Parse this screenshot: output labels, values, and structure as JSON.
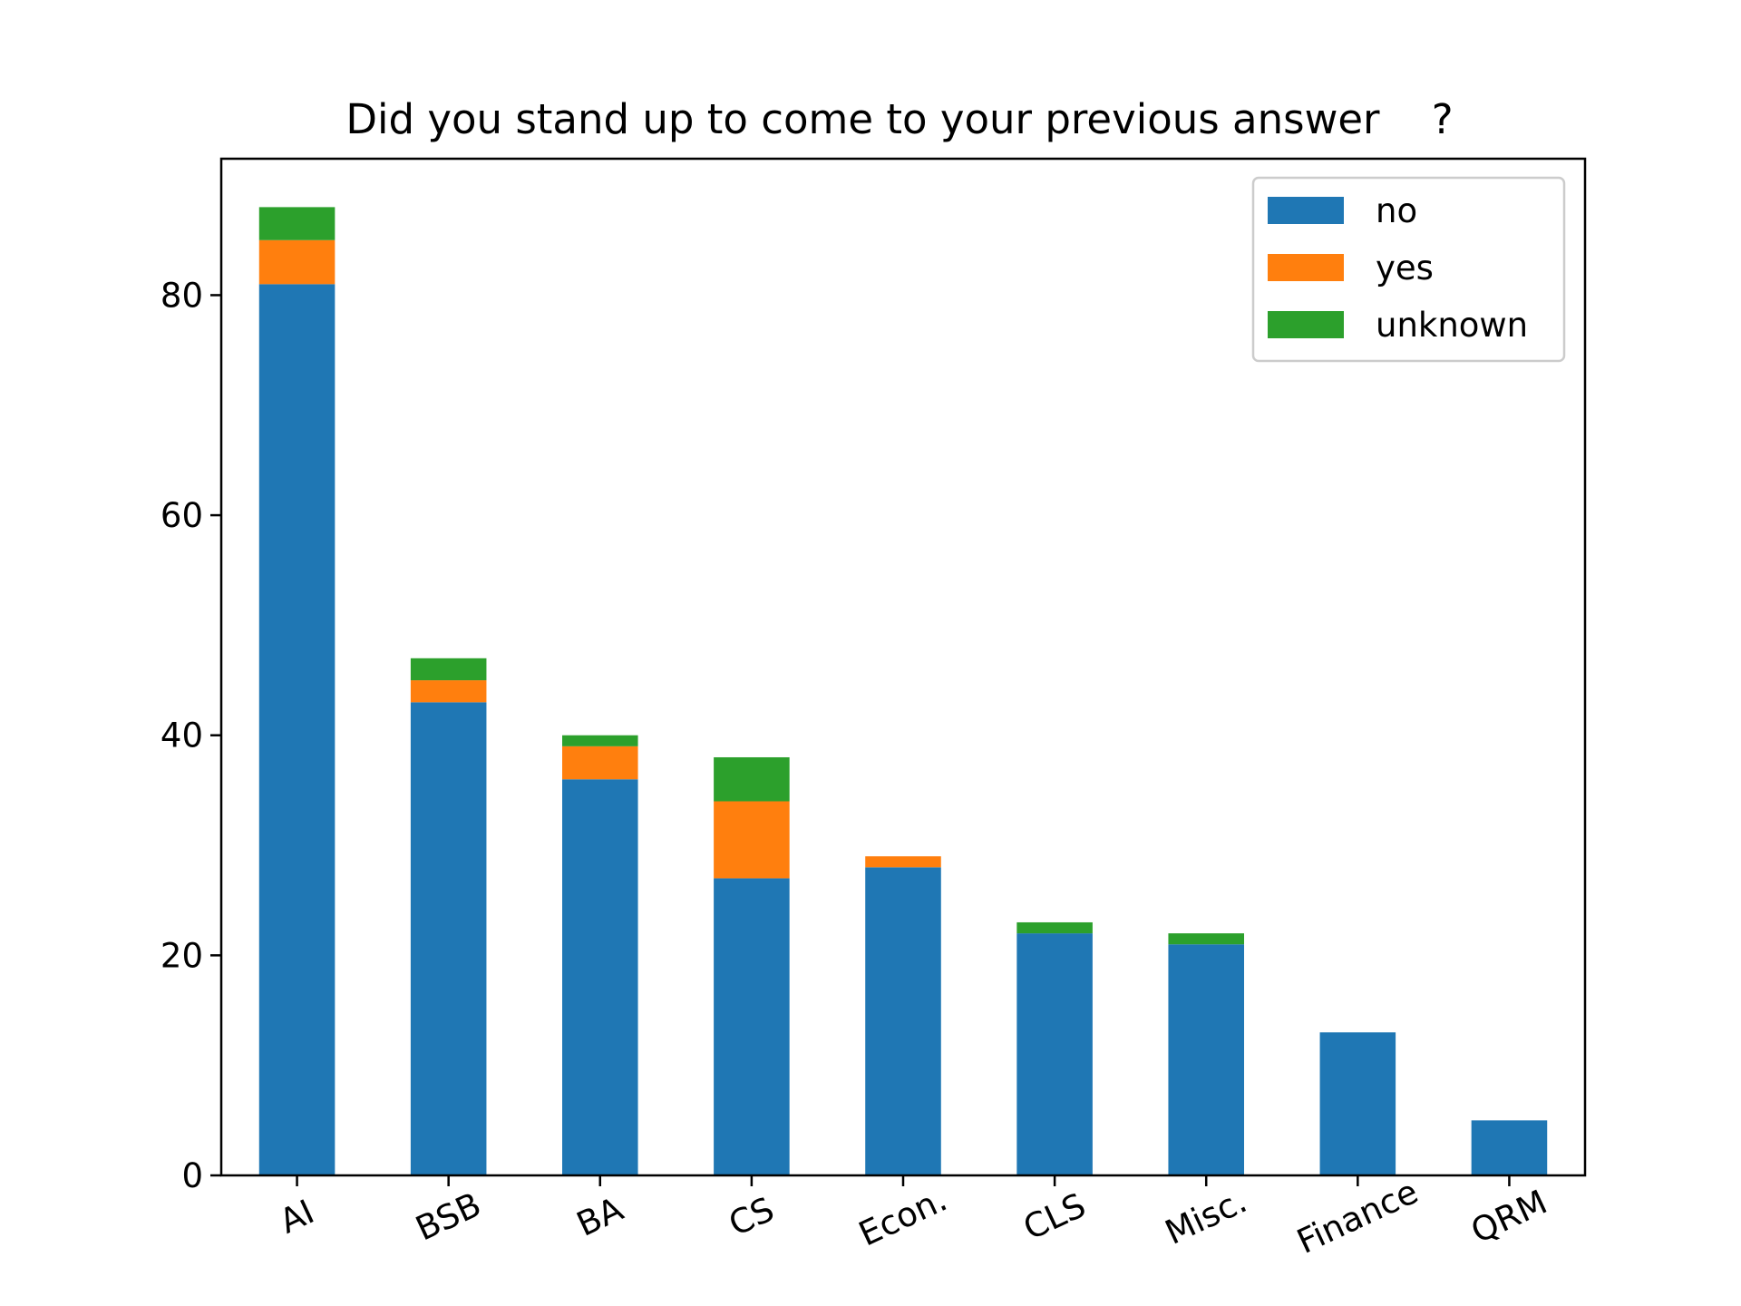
{
  "chart_data": {
    "type": "bar",
    "stacked": true,
    "title": "Did you stand up to come to your previous answer    ?",
    "xlabel": "",
    "ylabel": "",
    "categories": [
      "AI",
      "BSB",
      "BA",
      "CS",
      "Econ.",
      "CLS",
      "Misc.",
      "Finance",
      "QRM"
    ],
    "series": [
      {
        "name": "no",
        "color": "#1f77b4",
        "values": [
          81,
          43,
          36,
          27,
          28,
          22,
          21,
          13,
          5
        ]
      },
      {
        "name": "yes",
        "color": "#ff7f0e",
        "values": [
          4,
          2,
          3,
          7,
          1,
          0,
          0,
          0,
          0
        ]
      },
      {
        "name": "unknown",
        "color": "#2ca02c",
        "values": [
          3,
          2,
          1,
          4,
          0,
          1,
          1,
          0,
          0
        ]
      }
    ],
    "ylim": [
      0,
      92.4
    ],
    "yticks": [
      "0",
      "20",
      "40",
      "60",
      "80"
    ],
    "grid": false,
    "legend_position": "top-right"
  }
}
